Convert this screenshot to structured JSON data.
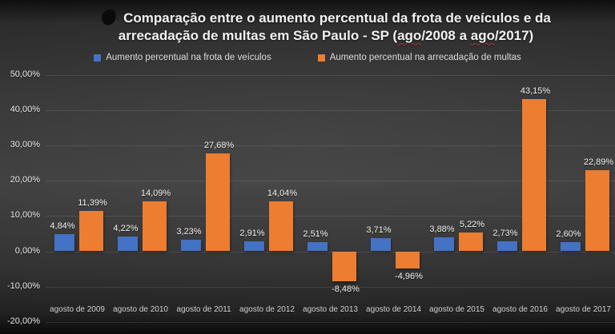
{
  "title": {
    "line1": "Comparação entre o aumento percentual da frota de veículos e da",
    "line2_prefix": "arrecadação de multas em São Paulo - SP (",
    "line2_ago1": "ago",
    "line2_mid": "/2008 a ",
    "line2_ago2": "ago",
    "line2_suffix": "/2017)"
  },
  "legend": [
    {
      "label": "Aumento percentual na frota de veículos",
      "color": "#4472C4"
    },
    {
      "label": "Aumento percentual na arrecadação de multas",
      "color": "#ED7D31"
    }
  ],
  "icons": {
    "scribble": "black-scribble-mark"
  },
  "chart_data": {
    "type": "bar",
    "title": "Comparação entre o aumento percentual da frota de veículos e da arrecadação de multas em São Paulo - SP (ago/2008 a ago/2017)",
    "categories": [
      "agosto de 2009",
      "agosto de 2010",
      "agosto de 2011",
      "agosto de 2012",
      "agosto de 2013",
      "agosto de 2014",
      "agosto de 2015",
      "agosto de 2016",
      "agosto de 2017"
    ],
    "series": [
      {
        "name": "Aumento percentual na frota de veículos",
        "color": "#4472C4",
        "values": [
          4.84,
          4.22,
          3.23,
          2.91,
          2.51,
          3.71,
          3.88,
          2.73,
          2.6
        ],
        "labels": [
          "4,84%",
          "4,22%",
          "3,23%",
          "2,91%",
          "2,51%",
          "3,71%",
          "3,88%",
          "2,73%",
          "2,60%"
        ]
      },
      {
        "name": "Aumento percentual na arrecadação de multas",
        "color": "#ED7D31",
        "values": [
          11.39,
          14.09,
          27.68,
          14.04,
          -8.48,
          -4.96,
          5.22,
          43.15,
          22.89
        ],
        "labels": [
          "11,39%",
          "14,09%",
          "27,68%",
          "14,04%",
          "-8,48%",
          "-4,96%",
          "5,22%",
          "43,15%",
          "22,89%"
        ]
      }
    ],
    "y_ticks": [
      {
        "label": "50,00%",
        "value": 50
      },
      {
        "label": "40,00%",
        "value": 40
      },
      {
        "label": "30,00%",
        "value": 30
      },
      {
        "label": "20,00%",
        "value": 20
      },
      {
        "label": "10,00%",
        "value": 10
      },
      {
        "label": "0,00%",
        "value": 0
      },
      {
        "label": "-10,00%",
        "value": -10
      },
      {
        "label": "-20,00%",
        "value": -20
      }
    ],
    "ylim": [
      -20,
      50
    ],
    "grid": "horizontal",
    "legend_position": "top"
  }
}
